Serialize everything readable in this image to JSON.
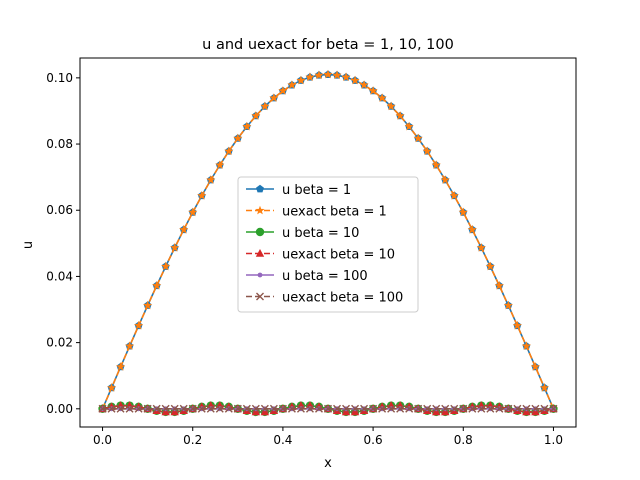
{
  "chart_data": {
    "type": "line",
    "title": "u and uexact for beta = 1, 10, 100",
    "xlabel": "x",
    "ylabel": "u",
    "xlim": [
      -0.05,
      1.05
    ],
    "ylim": [
      -0.0055,
      0.106
    ],
    "xticks": [
      "0.0",
      "0.2",
      "0.4",
      "0.6",
      "0.8",
      "1.0"
    ],
    "yticks": [
      "0.00",
      "0.02",
      "0.04",
      "0.06",
      "0.08",
      "0.10"
    ],
    "grid": false,
    "legend_position": "center",
    "series": [
      {
        "name": "u beta = 1",
        "color": "#1f77b4",
        "marker": "pentagon",
        "linestyle": "solid",
        "model": "beta1"
      },
      {
        "name": "uexact beta = 1",
        "color": "#ff7f0e",
        "marker": "star",
        "linestyle": "dashed",
        "model": "beta1"
      },
      {
        "name": "u beta = 10",
        "color": "#2ca02c",
        "marker": "circle",
        "linestyle": "solid",
        "model": "beta10"
      },
      {
        "name": "uexact beta = 10",
        "color": "#d62728",
        "marker": "triangle",
        "linestyle": "dashed",
        "model": "beta10"
      },
      {
        "name": "u beta = 100",
        "color": "#9467bd",
        "marker": "dot",
        "linestyle": "solid",
        "model": "beta100"
      },
      {
        "name": "uexact beta = 100",
        "color": "#8c564b",
        "marker": "x",
        "linestyle": "dashed",
        "model": "beta100"
      }
    ]
  }
}
